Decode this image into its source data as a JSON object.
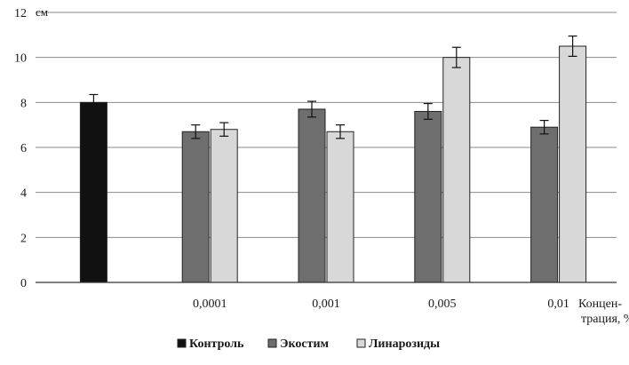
{
  "chart_data": {
    "type": "bar",
    "y_unit": "см",
    "ylim": [
      0,
      12
    ],
    "y_ticks": [
      "0",
      "2",
      "4",
      "6",
      "8",
      "10",
      "12"
    ],
    "grid": true,
    "categories": [
      "",
      "0,0001",
      "0,001",
      "0,005",
      "0,01"
    ],
    "x_axis_title": "Концен-\nтрация, %",
    "x_axis_title_lines": [
      "Концен-",
      "трация, %"
    ],
    "series": [
      {
        "name": "Контроль",
        "color": "#111111",
        "values": [
          8.0,
          null,
          null,
          null,
          null
        ],
        "errors": [
          0.35,
          null,
          null,
          null,
          null
        ]
      },
      {
        "name": "Экостим",
        "color": "#6e6e6e",
        "values": [
          null,
          6.7,
          7.7,
          7.6,
          6.9
        ],
        "errors": [
          null,
          0.3,
          0.35,
          0.35,
          0.3
        ]
      },
      {
        "name": "Линарозиды",
        "color": "#d8d8d8",
        "values": [
          null,
          6.8,
          6.7,
          10.0,
          10.5
        ],
        "errors": [
          null,
          0.3,
          0.3,
          0.45,
          0.45
        ]
      }
    ],
    "legend_position": "bottom"
  }
}
